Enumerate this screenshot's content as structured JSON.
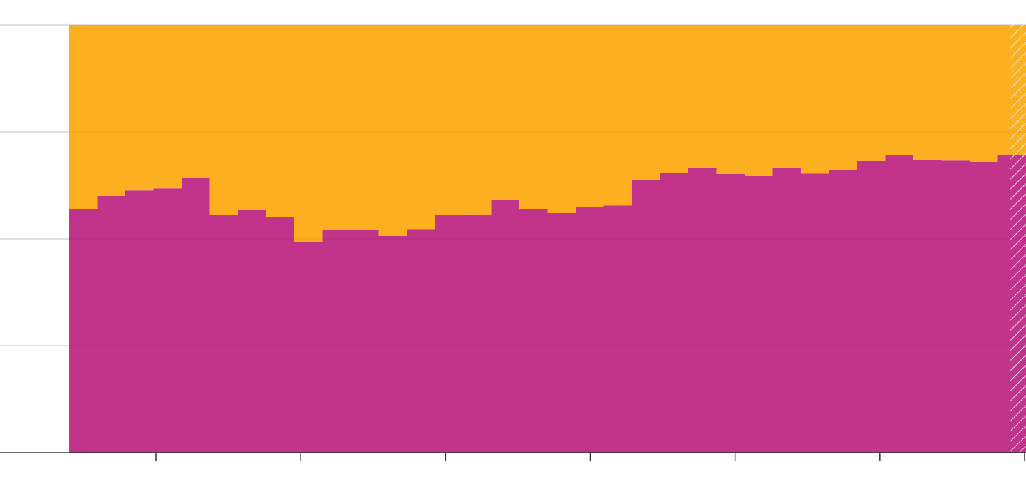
{
  "chart_data": {
    "type": "area",
    "stacked": true,
    "normalized": true,
    "step": true,
    "title": "",
    "xlabel": "",
    "ylabel": "",
    "ylim": [
      0,
      1
    ],
    "grid": true,
    "legend": "none",
    "x": [
      0,
      1,
      2,
      3,
      4,
      5,
      6,
      7,
      8,
      9,
      10,
      11,
      12,
      13,
      14,
      15,
      16,
      17,
      18,
      19,
      20,
      21,
      22,
      23,
      24,
      25,
      26,
      27,
      28,
      29,
      30,
      31,
      32,
      33
    ],
    "series": [
      {
        "color": "#c1308a",
        "values": [
          0.57,
          0.6,
          0.613,
          0.618,
          0.642,
          0.555,
          0.568,
          0.55,
          0.492,
          0.522,
          0.522,
          0.507,
          0.523,
          0.555,
          0.557,
          0.592,
          0.57,
          0.56,
          0.575,
          0.578,
          0.637,
          0.655,
          0.665,
          0.652,
          0.647,
          0.667,
          0.653,
          0.662,
          0.682,
          0.695,
          0.685,
          0.683,
          0.68,
          0.697
        ]
      },
      {
        "color": "#fdae1b",
        "values": [
          0.43,
          0.4,
          0.387,
          0.382,
          0.358,
          0.445,
          0.432,
          0.45,
          0.508,
          0.478,
          0.478,
          0.493,
          0.477,
          0.445,
          0.443,
          0.408,
          0.43,
          0.44,
          0.425,
          0.422,
          0.363,
          0.345,
          0.335,
          0.348,
          0.353,
          0.333,
          0.347,
          0.338,
          0.318,
          0.305,
          0.315,
          0.317,
          0.32,
          0.303
        ]
      }
    ],
    "projected_from_index": 33,
    "x_tick_count": 7,
    "y_grid_values": [
      0.25,
      0.5,
      0.75,
      1.0
    ]
  }
}
